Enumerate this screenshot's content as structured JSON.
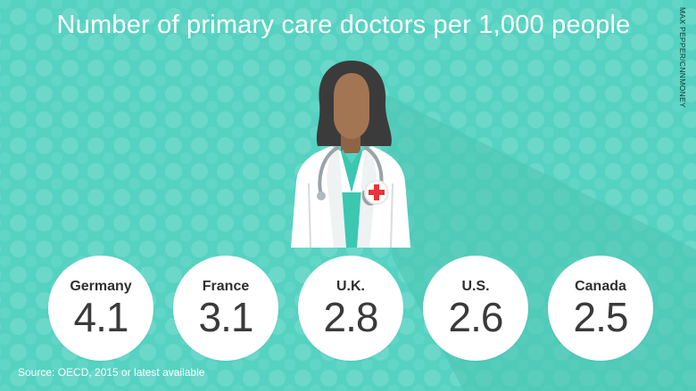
{
  "title": "Number of primary care doctors per 1,000 people",
  "credit": "MAX PEPPER/CNNMONEY",
  "source": "Source: OECD, 2015 or latest available",
  "colors": {
    "background": "#55d2c1",
    "circle": "#ffffff",
    "text_dark": "#363636",
    "coat": "#ffffff",
    "scrubs": "#3cc7b0",
    "hair": "#3b3b3b",
    "skin": "#a47553",
    "cross": "#e8343c"
  },
  "icons": [
    "doctor-illustration",
    "stethoscope-icon",
    "red-cross-icon"
  ],
  "chart_data": {
    "type": "bar",
    "title": "Number of primary care doctors per 1,000 people",
    "categories": [
      "Germany",
      "France",
      "U.K.",
      "U.S.",
      "Canada"
    ],
    "values": [
      4.1,
      3.1,
      2.8,
      2.6,
      2.5
    ],
    "value_labels": [
      "4.1",
      "3.1",
      "2.8",
      "2.6",
      "2.5"
    ],
    "xlabel": "",
    "ylabel": "",
    "grid": false,
    "legend": "none"
  }
}
